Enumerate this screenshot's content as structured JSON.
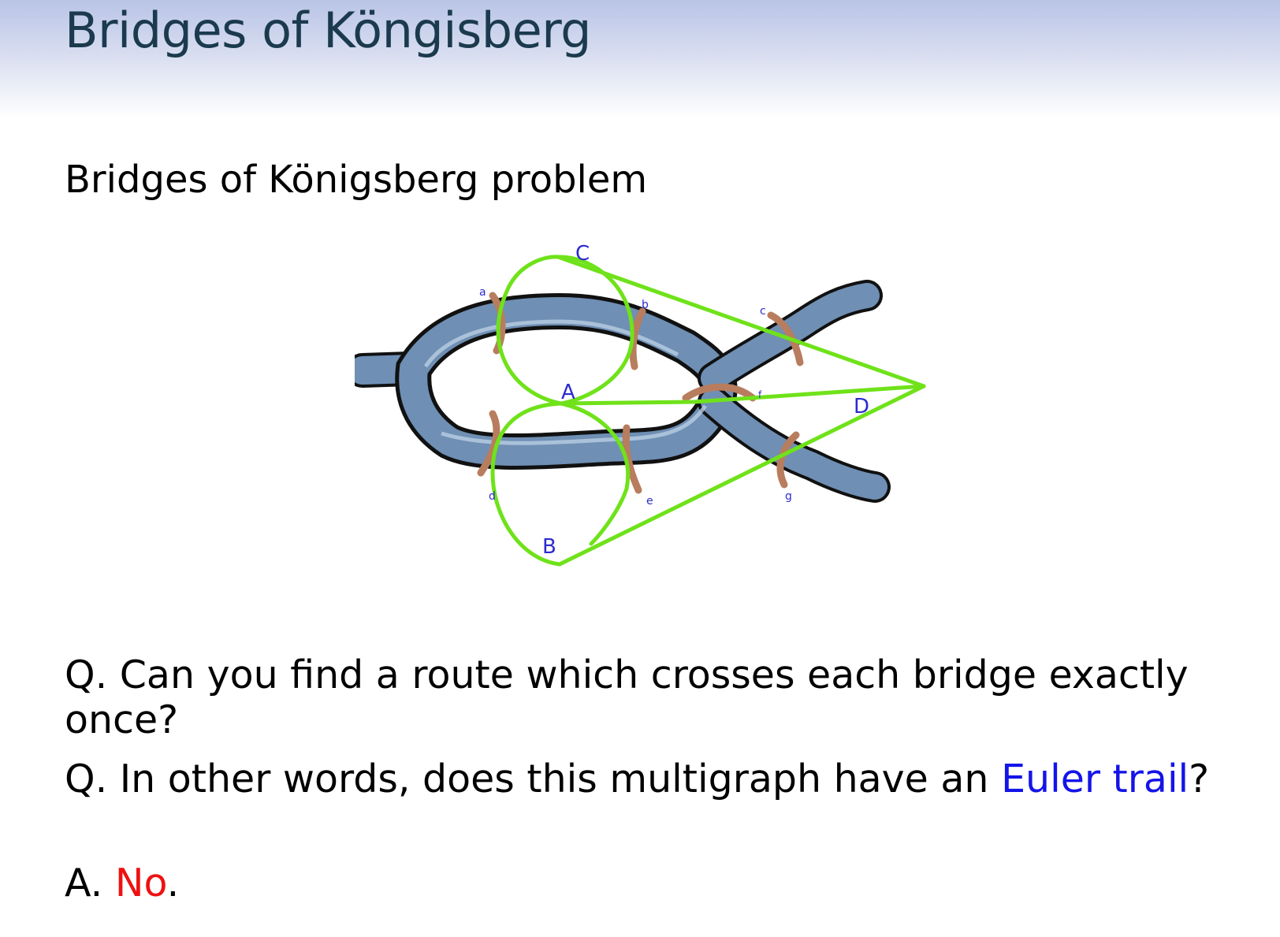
{
  "slide": {
    "title": "Bridges of Köngisberg",
    "subtitle": "Bridges of Königsberg problem"
  },
  "diagram": {
    "node_labels": {
      "A": "A",
      "B": "B",
      "C": "C",
      "D": "D"
    },
    "bridge_labels": {
      "a": "a",
      "b": "b",
      "c": "c",
      "d": "d",
      "e": "e",
      "f": "f",
      "g": "g"
    },
    "colors": {
      "river": "#6f8fb4",
      "river_edge": "#111111",
      "bridge": "#b87d5e",
      "edge": "#6fe21a",
      "node_label": "#2b2bd0"
    }
  },
  "questions": {
    "q1": "Q. Can you find a route which crosses each bridge exactly once?",
    "q2_prefix": "Q. In other words, does this multigraph have an ",
    "q2_term": "Euler trail",
    "q2_suffix": "?",
    "answer_prefix": "A. ",
    "answer_value": "No",
    "answer_suffix": "."
  }
}
